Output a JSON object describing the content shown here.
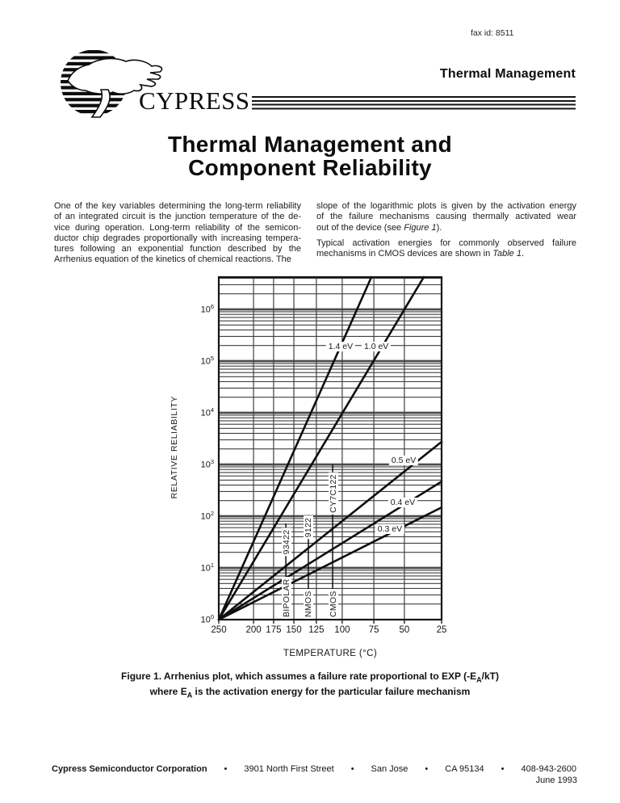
{
  "header": {
    "fax_id": "fax id: 8511",
    "doc_type": "Thermal Management",
    "brand": "CYPRESS"
  },
  "title": {
    "line1": "Thermal Management and",
    "line2": "Component Reliability"
  },
  "body": {
    "left_column_lines": [
      "One of the key variables determining the long-term reliability",
      "of an integrated circuit is the junction temperature of the de-",
      "vice during operation. Long-term reliability of the semicon-",
      "ductor chip degrades proportionally with increasing tempera-",
      "tures following an exponential function described by the",
      "Arrhenius equation of the kinetics of chemical reactions. The"
    ],
    "right_column": {
      "p1_lines": [
        "slope of the logarithmic plots is given by the activation energy",
        "of the failure mechanisms causing thermally activated wear"
      ],
      "p1_last_pre": "out of the device (see ",
      "p1_last_italic": "Figure 1",
      "p1_last_post": ").",
      "p2_lines": [
        "Typical activation energies for commonly observed failure"
      ],
      "p2_last_pre": "mechanisms in CMOS devices are shown in ",
      "p2_last_italic": "Table 1",
      "p2_last_post": "."
    }
  },
  "figure_caption": {
    "line1_pre": "Figure 1. Arrhenius plot, which assumes a failure rate proportional to EXP (-E",
    "line1_sub": "A",
    "line1_post": "/kT)",
    "line2_pre": "where E",
    "line2_sub": "A",
    "line2_post": " is the activation energy for the particular failure mechanism"
  },
  "chart_data": {
    "type": "line",
    "title": "Arrhenius plot of relative reliability vs temperature",
    "xlabel": "TEMPERATURE (°C)",
    "ylabel": "RELATIVE RELIABILITY",
    "x_axis": {
      "unit": "°C",
      "scale": "arrhenius (1/T, temperature decreasing left to right)",
      "ticks": [
        {
          "label": "250",
          "pos": 0
        },
        {
          "label": "200",
          "pos": 0.156
        },
        {
          "label": "175",
          "pos": 0.246
        },
        {
          "label": "150",
          "pos": 0.337
        },
        {
          "label": "125",
          "pos": 0.438
        },
        {
          "label": "100",
          "pos": 0.554
        },
        {
          "label": "75",
          "pos": 0.696
        },
        {
          "label": "50",
          "pos": 0.833
        },
        {
          "label": "25",
          "pos": 1.0
        }
      ]
    },
    "y_axis": {
      "scale": "log",
      "decade_exponents": [
        0,
        1,
        2,
        3,
        4,
        5,
        6
      ],
      "top_exponent": 6.625,
      "minor_gridlines": true
    },
    "series": [
      {
        "name": "1.4 eV",
        "activation_energy_eV": 1.4,
        "start": {
          "pos": 0,
          "exp": 0
        },
        "end": {
          "pos": 0.685,
          "exp": 6.625
        },
        "label": {
          "pos": 0.547,
          "exp": 5.28
        }
      },
      {
        "name": "1.0 eV",
        "activation_energy_eV": 1.0,
        "start": {
          "pos": 0,
          "exp": 0
        },
        "end": {
          "pos": 0.92,
          "exp": 6.625
        },
        "label": {
          "pos": 0.707,
          "exp": 5.28
        }
      },
      {
        "name": "0.5 eV",
        "activation_energy_eV": 0.5,
        "start": {
          "pos": 0,
          "exp": 0
        },
        "end": {
          "pos": 1.0,
          "exp": 3.44
        },
        "label": {
          "pos": 0.83,
          "exp": 3.08
        }
      },
      {
        "name": "0.4 eV",
        "activation_energy_eV": 0.4,
        "start": {
          "pos": 0,
          "exp": 0
        },
        "end": {
          "pos": 1.0,
          "exp": 2.67
        },
        "label": {
          "pos": 0.826,
          "exp": 2.27
        }
      },
      {
        "name": "0.3 eV",
        "activation_energy_eV": 0.3,
        "start": {
          "pos": 0,
          "exp": 0
        },
        "end": {
          "pos": 1.0,
          "exp": 2.17
        },
        "label": {
          "pos": 0.768,
          "exp": 1.75
        }
      }
    ],
    "device_markers": [
      {
        "technology": "BIPOLAR",
        "part": "93422",
        "pos": 0.301,
        "line_top_exp": 1.86,
        "part_label_exp": 1.5
      },
      {
        "technology": "NMOS",
        "part": "9122",
        "pos": 0.402,
        "line_top_exp": 2.02,
        "part_label_exp": 1.78
      },
      {
        "technology": "CMOS",
        "part": "CY7C122",
        "pos": 0.511,
        "line_top_exp": 3.0,
        "part_label_exp": 2.44
      }
    ]
  },
  "footer": {
    "company": "Cypress Semiconductor Corporation",
    "bullet": "•",
    "address": "3901 North First Street",
    "city": "San Jose",
    "state_zip": "CA 95134",
    "phone": "408-943-2600",
    "date": "June 1993"
  }
}
